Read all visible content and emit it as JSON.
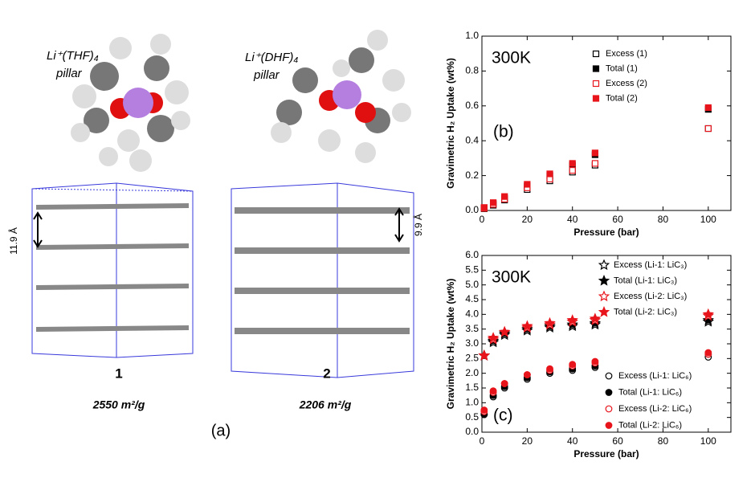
{
  "panel_a": {
    "structures": [
      {
        "label": "Li⁺(THF)₄",
        "note": "pillar",
        "spacing": "11.9 Å",
        "number": "1",
        "surface_area": "2550 m²/g"
      },
      {
        "label": "Li⁺(DHF)₄",
        "note": "pillar",
        "spacing": "9.9 Å",
        "number": "2",
        "surface_area": "2206 m²/g"
      }
    ],
    "caption": "(a)"
  },
  "chart_data": [
    {
      "type": "scatter",
      "x_label": "Pressure (bar)",
      "y_label": "Gravimetric H₂ Uptake (wt%)",
      "annotations": [
        "300K",
        "(b)"
      ],
      "x": [
        1,
        5,
        10,
        20,
        30,
        40,
        50,
        100
      ],
      "xlim": [
        0,
        110
      ],
      "xticks": [
        0,
        20,
        40,
        60,
        80,
        100
      ],
      "ylim": [
        0,
        1
      ],
      "yticks": [
        {
          "value": 0,
          "label": "0.0"
        },
        0.2,
        0.4,
        0.6,
        0.8,
        {
          "value": 1,
          "label": "1.0"
        }
      ],
      "series": [
        {
          "name": "Excess (1)",
          "color": "#000000",
          "marker": "square-open",
          "values": [
            0.01,
            0.03,
            0.06,
            0.12,
            0.17,
            0.22,
            0.26,
            0.47
          ]
        },
        {
          "name": "Total (1)",
          "color": "#000000",
          "marker": "square-filled",
          "values": [
            0.015,
            0.04,
            0.07,
            0.14,
            0.2,
            0.26,
            0.32,
            0.58
          ]
        },
        {
          "name": "Excess (2)",
          "color": "#e8141b",
          "marker": "square-open",
          "values": [
            0.012,
            0.035,
            0.065,
            0.13,
            0.18,
            0.23,
            0.27,
            0.47
          ]
        },
        {
          "name": "Total (2)",
          "color": "#e8141b",
          "marker": "square-filled",
          "values": [
            0.017,
            0.045,
            0.08,
            0.15,
            0.21,
            0.27,
            0.33,
            0.59
          ]
        }
      ]
    },
    {
      "type": "scatter",
      "x_label": "Pressure (bar)",
      "y_label": "Gravimetric H₂ Uptake (wt%)",
      "annotations": [
        "300K",
        "(c)"
      ],
      "x": [
        1,
        5,
        10,
        20,
        30,
        40,
        50,
        100
      ],
      "xlim": [
        0,
        110
      ],
      "xticks": [
        0,
        20,
        40,
        60,
        80,
        100
      ],
      "ylim": [
        0,
        6
      ],
      "yticks": [
        {
          "value": 0,
          "label": "0.0"
        },
        0.5,
        {
          "value": 1,
          "label": "1.0"
        },
        1.5,
        {
          "value": 2,
          "label": "2.0"
        },
        2.5,
        {
          "value": 3,
          "label": "3.0"
        },
        3.5,
        {
          "value": 4,
          "label": "4.0"
        },
        4.5,
        {
          "value": 5,
          "label": "5.0"
        },
        5.5,
        {
          "value": 6,
          "label": "6.0"
        }
      ],
      "series": [
        {
          "name": "Excess (Li-1: LiC₃)",
          "color": "#000000",
          "marker": "star-open",
          "values": [
            2.6,
            3.05,
            3.3,
            3.45,
            3.55,
            3.6,
            3.65,
            3.75
          ]
        },
        {
          "name": "Total (Li-1: LiC₃)",
          "color": "#000000",
          "marker": "star-filled",
          "values": [
            2.6,
            3.1,
            3.35,
            3.5,
            3.6,
            3.65,
            3.7,
            3.8
          ]
        },
        {
          "name": "Excess (Li-2: LiC₃)",
          "color": "#e8141b",
          "marker": "star-open",
          "values": [
            2.6,
            3.15,
            3.4,
            3.55,
            3.65,
            3.75,
            3.8,
            3.95
          ]
        },
        {
          "name": "Total (Li-2: LiC₃)",
          "color": "#e8141b",
          "marker": "star-filled",
          "values": [
            2.6,
            3.2,
            3.4,
            3.6,
            3.7,
            3.8,
            3.85,
            4.0
          ]
        },
        {
          "name": "Excess (Li-1: LiC₆)",
          "color": "#000000",
          "marker": "circle-open",
          "values": [
            0.6,
            1.2,
            1.5,
            1.8,
            2.0,
            2.1,
            2.2,
            2.55
          ]
        },
        {
          "name": "Total (Li-1: LiC₆)",
          "color": "#000000",
          "marker": "circle-filled",
          "values": [
            0.6,
            1.25,
            1.55,
            1.85,
            2.05,
            2.15,
            2.25,
            2.65
          ]
        },
        {
          "name": "Excess (Li-2: LiC₆)",
          "color": "#e8141b",
          "marker": "circle-open",
          "values": [
            0.7,
            1.35,
            1.65,
            1.95,
            2.1,
            2.25,
            2.35,
            2.65
          ]
        },
        {
          "name": "Total (Li-2: LiC₆)",
          "color": "#e8141b",
          "marker": "circle-filled",
          "values": [
            0.75,
            1.4,
            1.65,
            1.95,
            2.15,
            2.3,
            2.4,
            2.7
          ]
        }
      ]
    }
  ]
}
